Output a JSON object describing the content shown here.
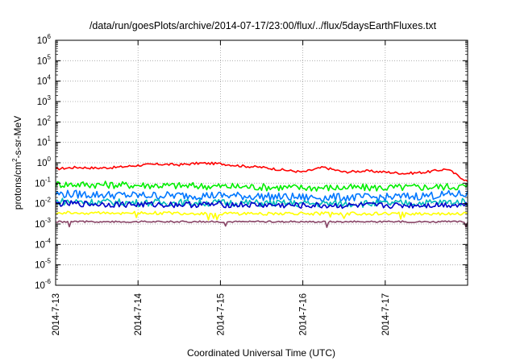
{
  "chart_data": {
    "type": "line",
    "title": "/data/run/goesPlots/archive/2014-07-17/23:00/flux/../flux/5daysEarthFluxes.txt",
    "xlabel": "Coordinated Universal Time (UTC)",
    "ylabel_parts": [
      "protons/cm",
      "2",
      "-s-sr-MeV"
    ],
    "y_scale": "log",
    "ylim": [
      1e-06,
      1000000.0
    ],
    "y_ticks": [
      {
        "base": "10",
        "exp": "-6"
      },
      {
        "base": "10",
        "exp": "-5"
      },
      {
        "base": "10",
        "exp": "-4"
      },
      {
        "base": "10",
        "exp": "-3"
      },
      {
        "base": "10",
        "exp": "-2"
      },
      {
        "base": "10",
        "exp": "-1"
      },
      {
        "base": "10",
        "exp": "0"
      },
      {
        "base": "10",
        "exp": "1"
      },
      {
        "base": "10",
        "exp": "2"
      },
      {
        "base": "10",
        "exp": "3"
      },
      {
        "base": "10",
        "exp": "4"
      },
      {
        "base": "10",
        "exp": "5"
      },
      {
        "base": "10",
        "exp": "6"
      }
    ],
    "x_ticks": [
      "2014-7-13",
      "2014-7-14",
      "2014-7-15",
      "2014-7-16",
      "2014-7-17"
    ],
    "x_range": [
      "2014-07-13 00:00",
      "2014-07-18 00:00"
    ],
    "grid": true,
    "series": [
      {
        "color": "#ff0000",
        "x": [
          "2014-07-13 00:00",
          "2014-07-13 06:00",
          "2014-07-13 12:00",
          "2014-07-13 18:00",
          "2014-07-14 00:00",
          "2014-07-14 06:00",
          "2014-07-14 12:00",
          "2014-07-14 18:00",
          "2014-07-15 00:00",
          "2014-07-15 06:00",
          "2014-07-15 12:00",
          "2014-07-15 18:00",
          "2014-07-16 00:00",
          "2014-07-16 06:00",
          "2014-07-16 12:00",
          "2014-07-16 18:00",
          "2014-07-17 00:00",
          "2014-07-17 06:00",
          "2014-07-17 12:00",
          "2014-07-17 18:00",
          "2014-07-18 00:00"
        ],
        "values": [
          0.5,
          0.6,
          0.55,
          0.6,
          0.75,
          0.85,
          0.8,
          0.95,
          0.9,
          0.7,
          0.6,
          0.45,
          0.35,
          0.6,
          0.35,
          0.4,
          0.35,
          0.3,
          0.35,
          0.5,
          0.12
        ]
      },
      {
        "color": "#00ee00",
        "x": [
          "2014-07-13 00:00",
          "2014-07-14 00:00",
          "2014-07-15 00:00",
          "2014-07-16 00:00",
          "2014-07-17 00:00",
          "2014-07-18 00:00"
        ],
        "values": [
          0.09,
          0.08,
          0.07,
          0.06,
          0.06,
          0.07
        ]
      },
      {
        "color": "#0077ff",
        "x": [
          "2014-07-13 00:00",
          "2014-07-14 00:00",
          "2014-07-15 00:00",
          "2014-07-16 00:00",
          "2014-07-17 00:00",
          "2014-07-18 00:00"
        ],
        "values": [
          0.03,
          0.025,
          0.025,
          0.02,
          0.02,
          0.03
        ]
      },
      {
        "color": "#00bbbb",
        "x": [
          "2014-07-13 00:00",
          "2014-07-14 00:00",
          "2014-07-15 00:00",
          "2014-07-16 00:00",
          "2014-07-17 00:00",
          "2014-07-18 00:00"
        ],
        "values": [
          0.013,
          0.011,
          0.011,
          0.01,
          0.01,
          0.012
        ]
      },
      {
        "color": "#0000cc",
        "x": [
          "2014-07-13 00:00",
          "2014-07-14 00:00",
          "2014-07-15 00:00",
          "2014-07-16 00:00",
          "2014-07-17 00:00",
          "2014-07-18 00:00"
        ],
        "values": [
          0.01,
          0.009,
          0.009,
          0.008,
          0.008,
          0.009
        ]
      },
      {
        "color": "#ffff00",
        "x": [
          "2014-07-13 00:00",
          "2014-07-14 00:00",
          "2014-07-15 00:00",
          "2014-07-16 00:00",
          "2014-07-17 00:00",
          "2014-07-18 00:00"
        ],
        "values": [
          0.0035,
          0.0035,
          0.0032,
          0.0033,
          0.0032,
          0.0033
        ]
      },
      {
        "color": "#884466",
        "x": [
          "2014-07-13 00:00",
          "2014-07-14 00:00",
          "2014-07-15 00:00",
          "2014-07-16 00:00",
          "2014-07-17 00:00",
          "2014-07-18 00:00"
        ],
        "values": [
          0.0013,
          0.0013,
          0.0013,
          0.0013,
          0.0013,
          0.0013
        ]
      }
    ]
  }
}
